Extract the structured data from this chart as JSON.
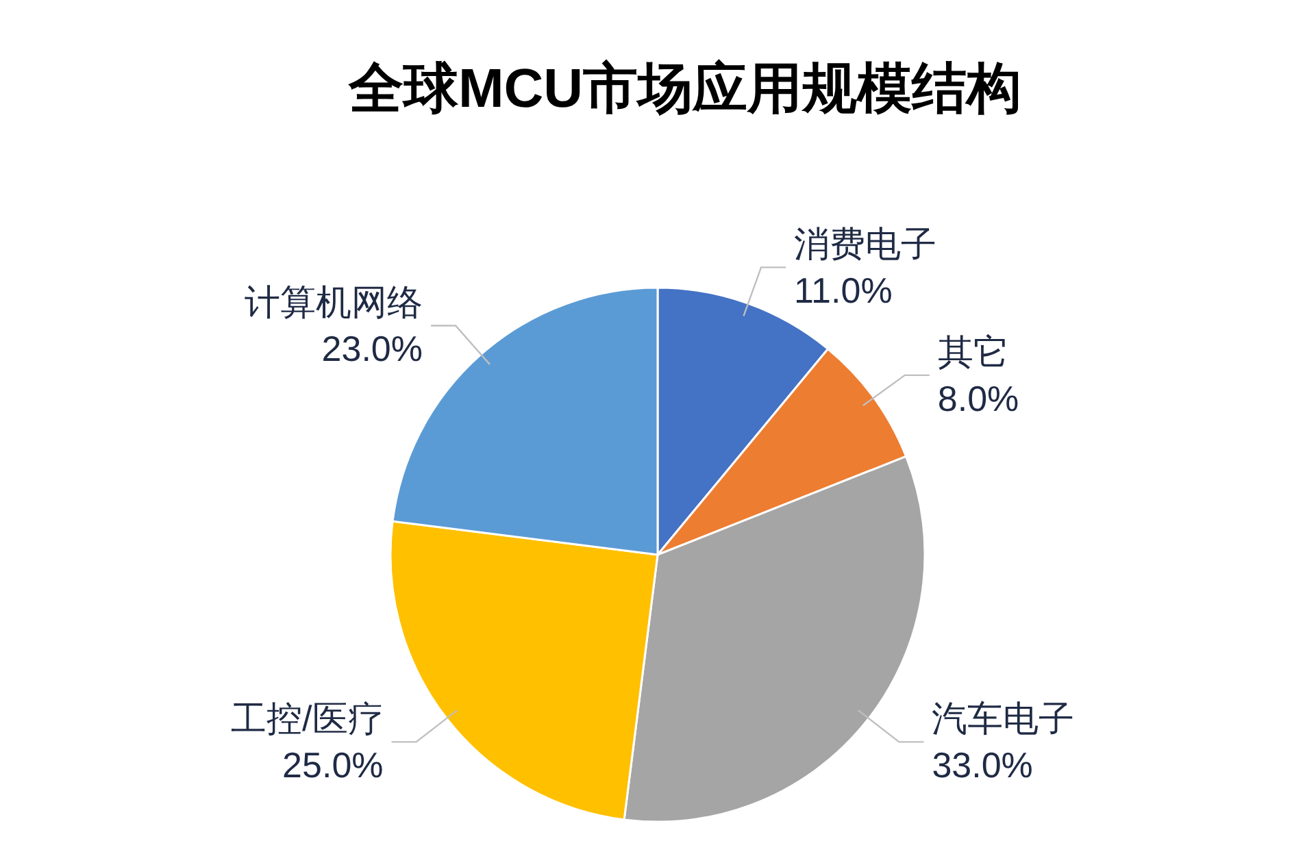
{
  "chart_data": {
    "type": "pie",
    "title": "全球MCU市场应用规模结构",
    "categories": [
      "消费电子",
      "其它",
      "汽车电子",
      "工控/医疗",
      "计算机网络"
    ],
    "values": [
      11,
      8,
      33,
      25,
      23
    ],
    "colors": [
      "#4472c4",
      "#ed7d31",
      "#a5a5a5",
      "#ffc000",
      "#5b9bd5"
    ],
    "value_labels": [
      "11.0%",
      "8.0%",
      "33.0%",
      "25.0%",
      "23.0%"
    ]
  }
}
